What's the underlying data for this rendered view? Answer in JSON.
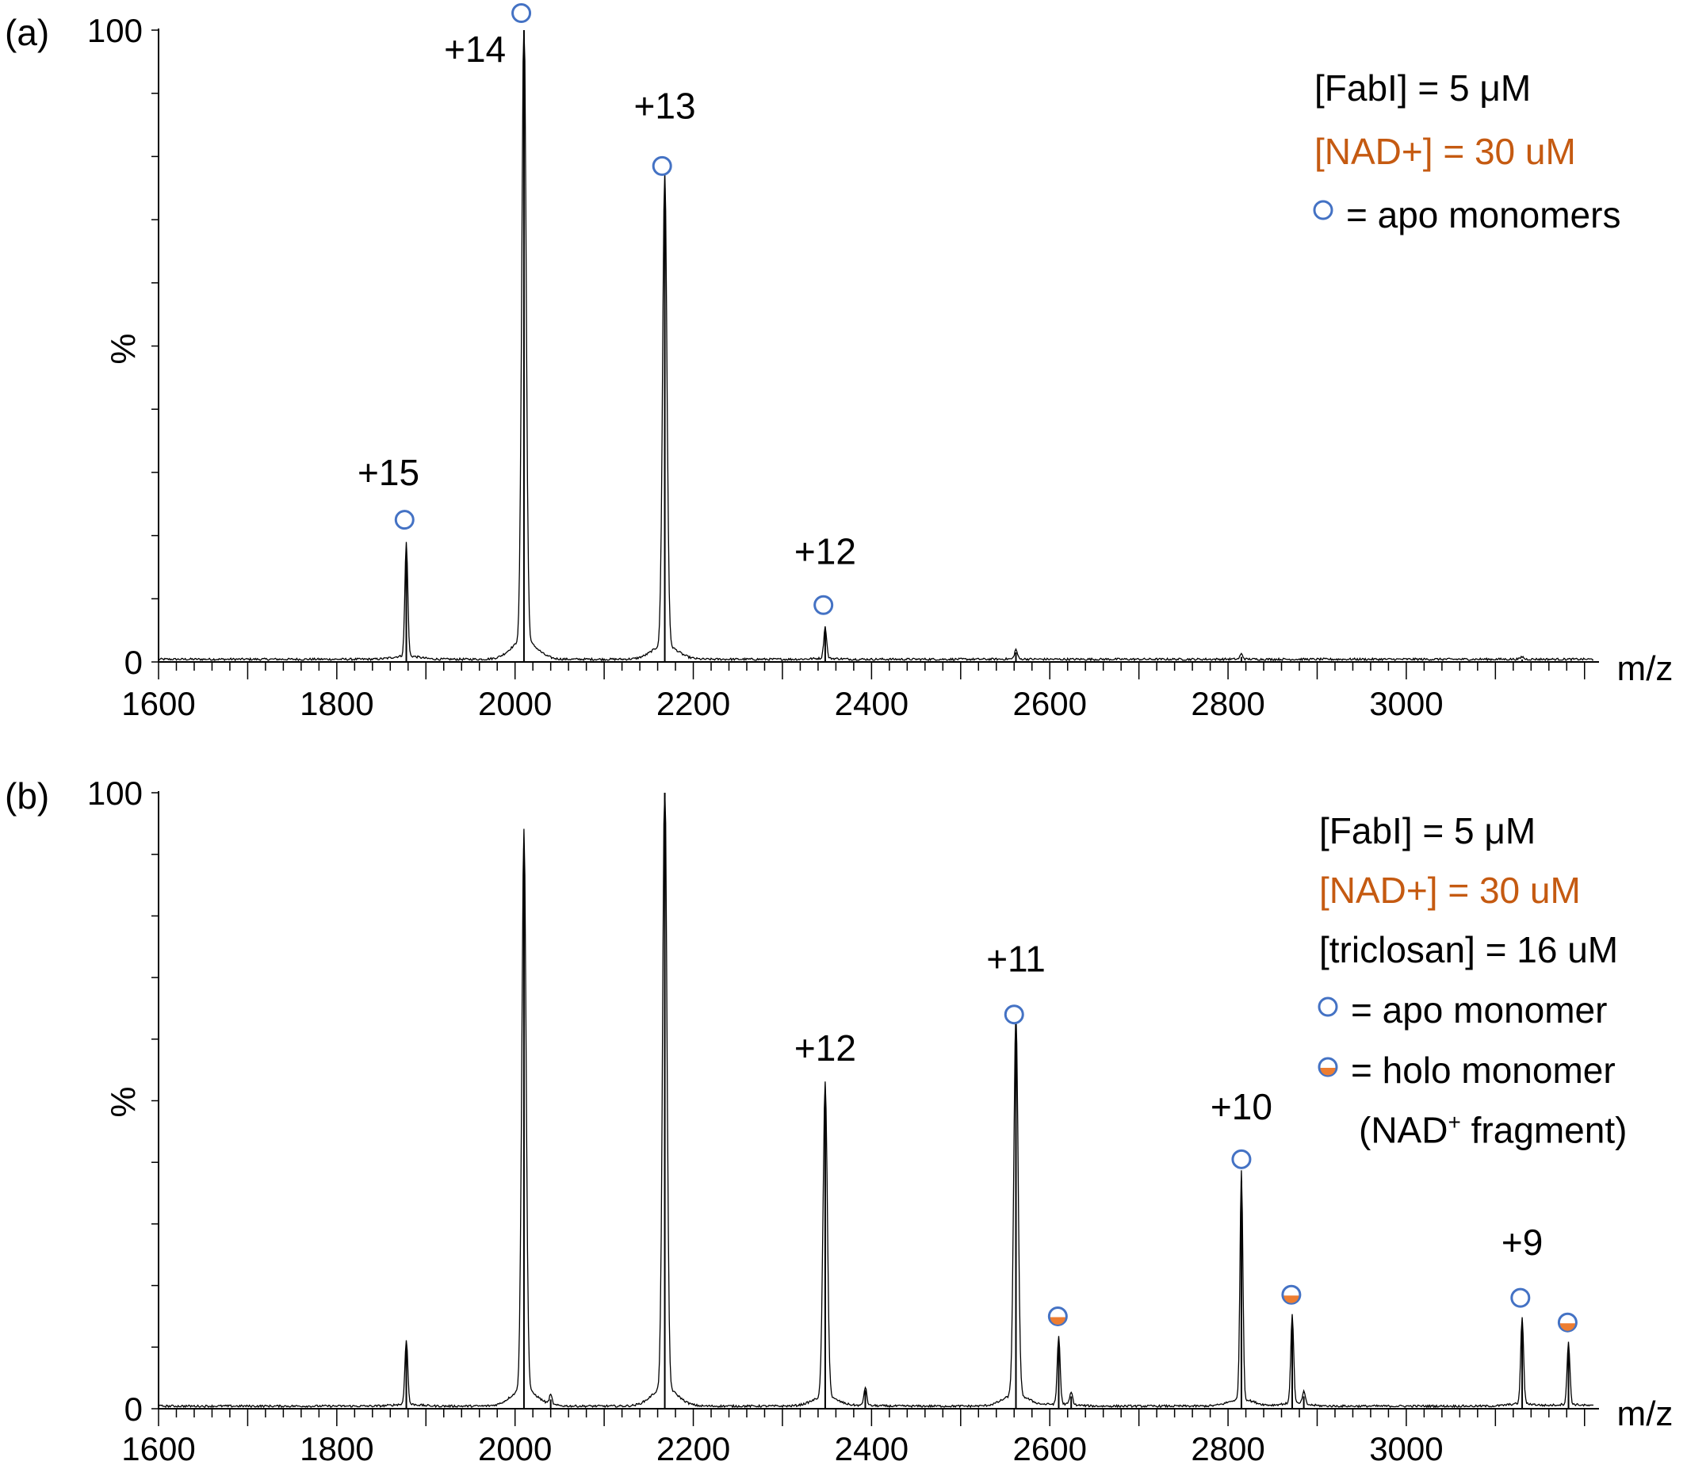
{
  "chart_data": [
    {
      "panel_label": "(a)",
      "type": "line",
      "xlabel": "m/z",
      "ylabel": "%",
      "xlim": [
        1600,
        3210
      ],
      "ylim": [
        0,
        100
      ],
      "xticks": [
        "1600",
        "1800",
        "2000",
        "2200",
        "2400",
        "2600",
        "2800",
        "3000"
      ],
      "yticks": [
        "0",
        "100"
      ],
      "peaks": [
        {
          "mz": 1878,
          "height": 18
        },
        {
          "mz": 2010,
          "height": 100
        },
        {
          "mz": 2168,
          "height": 75
        },
        {
          "mz": 2348,
          "height": 5
        },
        {
          "mz": 2562,
          "height": 1.5
        },
        {
          "mz": 2815,
          "height": 0.8
        },
        {
          "mz": 3130,
          "height": 0.4
        }
      ],
      "annotations": [
        {
          "text": "+15",
          "mz": 1858,
          "y": 28
        },
        {
          "text": "+14",
          "mz": 1955,
          "y": 95
        },
        {
          "text": "+13",
          "mz": 2168,
          "y": 86
        },
        {
          "text": "+12",
          "mz": 2348,
          "y": 15.5
        }
      ],
      "markers": [
        {
          "kind": "apo",
          "mz": 1876,
          "y": 22.5
        },
        {
          "kind": "apo",
          "mz": 2007,
          "y": 102.7
        },
        {
          "kind": "apo",
          "mz": 2165,
          "y": 78.5
        },
        {
          "kind": "apo",
          "mz": 2346,
          "y": 9
        }
      ],
      "legend": [
        {
          "text": "[FabI] = 5 μM",
          "color": "#000000"
        },
        {
          "text": "[NAD+] = 30 uM",
          "color": "#c55a11"
        },
        {
          "text": "= apo monomers",
          "color": "#000000",
          "marker": "apo"
        }
      ]
    },
    {
      "panel_label": "(b)",
      "type": "line",
      "xlabel": "m/z",
      "ylabel": "%",
      "xlim": [
        1600,
        3210
      ],
      "ylim": [
        0,
        100
      ],
      "xticks": [
        "1600",
        "1800",
        "2000",
        "2200",
        "2400",
        "2600",
        "2800",
        "3000"
      ],
      "yticks": [
        "0",
        "100"
      ],
      "peaks": [
        {
          "mz": 1878,
          "height": 10.5
        },
        {
          "mz": 2010,
          "height": 91
        },
        {
          "mz": 2040,
          "height": 1.5
        },
        {
          "mz": 2168,
          "height": 100
        },
        {
          "mz": 2348,
          "height": 51
        },
        {
          "mz": 2393,
          "height": 3
        },
        {
          "mz": 2562,
          "height": 62
        },
        {
          "mz": 2610,
          "height": 11
        },
        {
          "mz": 2624,
          "height": 2
        },
        {
          "mz": 2815,
          "height": 37
        },
        {
          "mz": 2872,
          "height": 14.5
        },
        {
          "mz": 2885,
          "height": 2
        },
        {
          "mz": 3130,
          "height": 14
        },
        {
          "mz": 3182,
          "height": 10
        }
      ],
      "annotations": [
        {
          "text": "+12",
          "mz": 2348,
          "y": 56.5
        },
        {
          "text": "+11",
          "mz": 2562,
          "y": 71
        },
        {
          "text": "+10",
          "mz": 2815,
          "y": 47
        },
        {
          "text": "+9",
          "mz": 3130,
          "y": 25
        }
      ],
      "markers": [
        {
          "kind": "apo",
          "mz": 2560,
          "y": 64
        },
        {
          "kind": "apo",
          "mz": 2815,
          "y": 40.5
        },
        {
          "kind": "apo",
          "mz": 3128,
          "y": 18
        },
        {
          "kind": "holo",
          "mz": 2609,
          "y": 15
        },
        {
          "kind": "holo",
          "mz": 2871,
          "y": 18.5
        },
        {
          "kind": "holo",
          "mz": 3181,
          "y": 14
        }
      ],
      "legend": [
        {
          "text": "[FabI] = 5 μM",
          "color": "#000000"
        },
        {
          "text": "[NAD+] = 30 uM",
          "color": "#c55a11"
        },
        {
          "text": "[triclosan] = 16 uM",
          "color": "#000000"
        },
        {
          "text": "= apo monomer",
          "color": "#000000",
          "marker": "apo"
        },
        {
          "text": "= holo monomer",
          "color": "#000000",
          "marker": "holo"
        },
        {
          "text": "(NAD",
          "sup": "+",
          "tail": " fragment)",
          "color": "#000000"
        }
      ]
    }
  ],
  "colors": {
    "apo_marker": "#4472c4",
    "holo_fill": "#ed7d31",
    "nad_text": "#c55a11",
    "axis": "#000000"
  }
}
